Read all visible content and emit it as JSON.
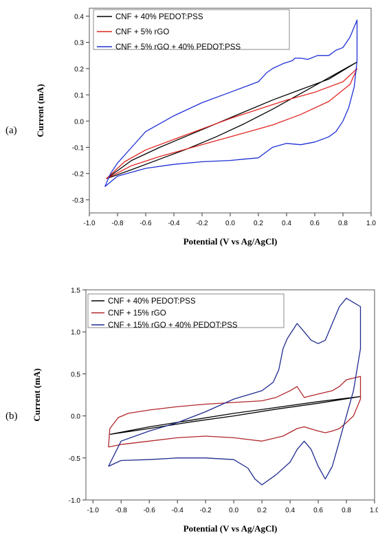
{
  "chart_data": [
    {
      "panel": "(a)",
      "type": "line",
      "xlabel": "Potential (V vs Ag/AgCl)",
      "ylabel": "Current (mA)",
      "xlim": [
        -1.0,
        1.0
      ],
      "ylim": [
        -0.35,
        0.43
      ],
      "xticks": [
        -1.0,
        -0.8,
        -0.6,
        -0.4,
        -0.2,
        0.0,
        0.2,
        0.4,
        0.6,
        0.8,
        1.0
      ],
      "yticks": [
        -0.3,
        -0.2,
        -0.1,
        0.0,
        0.1,
        0.2,
        0.3,
        0.4
      ],
      "xtick_labels": [
        "-1.0",
        "-0.8",
        "-0.6",
        "-0.4",
        "-0.2",
        "0.0",
        "0.2",
        "0.4",
        "0.6",
        "0.8",
        "1.0"
      ],
      "ytick_labels": [
        "-0.3",
        "-0.2",
        "-0.1",
        "0.0",
        "0.1",
        "0.2",
        "0.3",
        "0.4"
      ],
      "legend_position": "top-left",
      "series": [
        {
          "name": "CNF + 40% PEDOT:PSS",
          "color": "#000000",
          "points": [
            [
              -0.88,
              -0.22
            ],
            [
              -0.7,
              -0.185
            ],
            [
              -0.5,
              -0.145
            ],
            [
              -0.3,
              -0.105
            ],
            [
              -0.1,
              -0.06
            ],
            [
              0.1,
              -0.01
            ],
            [
              0.3,
              0.045
            ],
            [
              0.5,
              0.105
            ],
            [
              0.7,
              0.165
            ],
            [
              0.9,
              0.225
            ],
            [
              0.7,
              0.16
            ],
            [
              0.5,
              0.12
            ],
            [
              0.3,
              0.08
            ],
            [
              0.1,
              0.035
            ],
            [
              -0.1,
              -0.01
            ],
            [
              -0.3,
              -0.055
            ],
            [
              -0.5,
              -0.1
            ],
            [
              -0.7,
              -0.15
            ],
            [
              -0.88,
              -0.22
            ]
          ]
        },
        {
          "name": "CNF + 5% rGO",
          "color": "#e0251f",
          "points": [
            [
              -0.88,
              -0.22
            ],
            [
              -0.75,
              -0.155
            ],
            [
              -0.6,
              -0.11
            ],
            [
              -0.4,
              -0.07
            ],
            [
              -0.2,
              -0.03
            ],
            [
              0.0,
              0.01
            ],
            [
              0.2,
              0.045
            ],
            [
              0.4,
              0.08
            ],
            [
              0.6,
              0.11
            ],
            [
              0.8,
              0.15
            ],
            [
              0.9,
              0.2
            ],
            [
              0.85,
              0.14
            ],
            [
              0.7,
              0.075
            ],
            [
              0.5,
              0.025
            ],
            [
              0.3,
              -0.015
            ],
            [
              0.1,
              -0.045
            ],
            [
              -0.1,
              -0.075
            ],
            [
              -0.3,
              -0.105
            ],
            [
              -0.5,
              -0.135
            ],
            [
              -0.7,
              -0.17
            ],
            [
              -0.88,
              -0.22
            ]
          ]
        },
        {
          "name": "CNF + 5% rGO + 40% PEDOT:PSS",
          "color": "#1e2fd4",
          "points": [
            [
              -0.89,
              -0.25
            ],
            [
              -0.85,
              -0.2
            ],
            [
              -0.8,
              -0.16
            ],
            [
              -0.7,
              -0.1
            ],
            [
              -0.6,
              -0.04
            ],
            [
              -0.4,
              0.02
            ],
            [
              -0.2,
              0.07
            ],
            [
              0.0,
              0.11
            ],
            [
              0.2,
              0.15
            ],
            [
              0.26,
              0.185
            ],
            [
              0.3,
              0.2
            ],
            [
              0.38,
              0.22
            ],
            [
              0.44,
              0.23
            ],
            [
              0.46,
              0.24
            ],
            [
              0.5,
              0.24
            ],
            [
              0.55,
              0.235
            ],
            [
              0.62,
              0.25
            ],
            [
              0.7,
              0.25
            ],
            [
              0.75,
              0.27
            ],
            [
              0.8,
              0.28
            ],
            [
              0.85,
              0.32
            ],
            [
              0.9,
              0.385
            ],
            [
              0.9,
              0.23
            ],
            [
              0.88,
              0.13
            ],
            [
              0.84,
              0.05
            ],
            [
              0.8,
              0.0
            ],
            [
              0.75,
              -0.04
            ],
            [
              0.7,
              -0.06
            ],
            [
              0.65,
              -0.07
            ],
            [
              0.6,
              -0.08
            ],
            [
              0.5,
              -0.09
            ],
            [
              0.4,
              -0.085
            ],
            [
              0.3,
              -0.1
            ],
            [
              0.2,
              -0.14
            ],
            [
              0.1,
              -0.145
            ],
            [
              0.0,
              -0.15
            ],
            [
              -0.2,
              -0.155
            ],
            [
              -0.4,
              -0.165
            ],
            [
              -0.6,
              -0.18
            ],
            [
              -0.8,
              -0.21
            ],
            [
              -0.89,
              -0.25
            ]
          ]
        }
      ]
    },
    {
      "panel": "(b)",
      "type": "line",
      "xlabel": "Potential (V vs Ag/AgCl)",
      "ylabel": "Current (mA)",
      "xlim": [
        -1.05,
        1.0
      ],
      "ylim": [
        -1.0,
        1.5
      ],
      "xticks": [
        -1.0,
        -0.8,
        -0.6,
        -0.4,
        -0.2,
        0.0,
        0.2,
        0.4,
        0.6,
        0.8,
        1.0
      ],
      "yticks": [
        -1.0,
        -0.5,
        0.0,
        0.5,
        1.0,
        1.5
      ],
      "xtick_labels": [
        "-1.0",
        "-0.8",
        "-0.6",
        "-0.4",
        "-0.2",
        "0.0",
        "0.2",
        "0.4",
        "0.6",
        "0.8",
        "1.0"
      ],
      "ytick_labels": [
        "-1.0",
        "-0.5",
        "0.0",
        "0.5",
        "1.0",
        "1.5"
      ],
      "legend_position": "top-left",
      "series": [
        {
          "name": "CNF + 40% PEDOT:PSS",
          "color": "#000000",
          "points": [
            [
              -0.88,
              -0.22
            ],
            [
              -0.6,
              -0.15
            ],
            [
              -0.3,
              -0.07
            ],
            [
              0.0,
              0.0
            ],
            [
              0.3,
              0.08
            ],
            [
              0.6,
              0.15
            ],
            [
              0.9,
              0.23
            ],
            [
              0.6,
              0.17
            ],
            [
              0.3,
              0.1
            ],
            [
              0.0,
              0.03
            ],
            [
              -0.3,
              -0.05
            ],
            [
              -0.6,
              -0.13
            ],
            [
              -0.88,
              -0.22
            ]
          ]
        },
        {
          "name": "CNF + 15% rGO",
          "color": "#b0262a",
          "points": [
            [
              -0.89,
              -0.37
            ],
            [
              -0.88,
              -0.15
            ],
            [
              -0.82,
              -0.02
            ],
            [
              -0.75,
              0.03
            ],
            [
              -0.6,
              0.07
            ],
            [
              -0.4,
              0.11
            ],
            [
              -0.2,
              0.14
            ],
            [
              0.0,
              0.16
            ],
            [
              0.2,
              0.18
            ],
            [
              0.3,
              0.22
            ],
            [
              0.4,
              0.3
            ],
            [
              0.45,
              0.35
            ],
            [
              0.5,
              0.22
            ],
            [
              0.6,
              0.26
            ],
            [
              0.7,
              0.3
            ],
            [
              0.75,
              0.35
            ],
            [
              0.8,
              0.43
            ],
            [
              0.85,
              0.45
            ],
            [
              0.9,
              0.47
            ],
            [
              0.9,
              0.2
            ],
            [
              0.85,
              0.0
            ],
            [
              0.8,
              -0.08
            ],
            [
              0.75,
              -0.15
            ],
            [
              0.7,
              -0.18
            ],
            [
              0.65,
              -0.2
            ],
            [
              0.6,
              -0.18
            ],
            [
              0.5,
              -0.13
            ],
            [
              0.45,
              -0.15
            ],
            [
              0.35,
              -0.24
            ],
            [
              0.25,
              -0.28
            ],
            [
              0.2,
              -0.3
            ],
            [
              0.1,
              -0.28
            ],
            [
              0.0,
              -0.26
            ],
            [
              -0.2,
              -0.24
            ],
            [
              -0.4,
              -0.26
            ],
            [
              -0.6,
              -0.3
            ],
            [
              -0.8,
              -0.34
            ],
            [
              -0.89,
              -0.37
            ]
          ]
        },
        {
          "name": "CNF + 15% rGO + 40% PEDOT:PSS",
          "color": "#1f2a8f",
          "points": [
            [
              -0.89,
              -0.6
            ],
            [
              -0.8,
              -0.3
            ],
            [
              -0.6,
              -0.18
            ],
            [
              -0.4,
              -0.08
            ],
            [
              -0.2,
              0.05
            ],
            [
              0.0,
              0.2
            ],
            [
              0.1,
              0.25
            ],
            [
              0.2,
              0.3
            ],
            [
              0.28,
              0.4
            ],
            [
              0.32,
              0.55
            ],
            [
              0.35,
              0.8
            ],
            [
              0.38,
              0.92
            ],
            [
              0.45,
              1.1
            ],
            [
              0.5,
              1.0
            ],
            [
              0.55,
              0.9
            ],
            [
              0.6,
              0.86
            ],
            [
              0.65,
              0.9
            ],
            [
              0.7,
              1.1
            ],
            [
              0.75,
              1.3
            ],
            [
              0.8,
              1.4
            ],
            [
              0.85,
              1.35
            ],
            [
              0.9,
              1.3
            ],
            [
              0.9,
              0.8
            ],
            [
              0.85,
              0.3
            ],
            [
              0.8,
              0.0
            ],
            [
              0.75,
              -0.3
            ],
            [
              0.7,
              -0.6
            ],
            [
              0.65,
              -0.75
            ],
            [
              0.6,
              -0.6
            ],
            [
              0.55,
              -0.4
            ],
            [
              0.5,
              -0.3
            ],
            [
              0.45,
              -0.4
            ],
            [
              0.4,
              -0.55
            ],
            [
              0.3,
              -0.7
            ],
            [
              0.2,
              -0.82
            ],
            [
              0.15,
              -0.75
            ],
            [
              0.1,
              -0.62
            ],
            [
              0.0,
              -0.52
            ],
            [
              -0.2,
              -0.5
            ],
            [
              -0.4,
              -0.5
            ],
            [
              -0.6,
              -0.52
            ],
            [
              -0.8,
              -0.53
            ],
            [
              -0.89,
              -0.6
            ]
          ]
        }
      ]
    }
  ]
}
